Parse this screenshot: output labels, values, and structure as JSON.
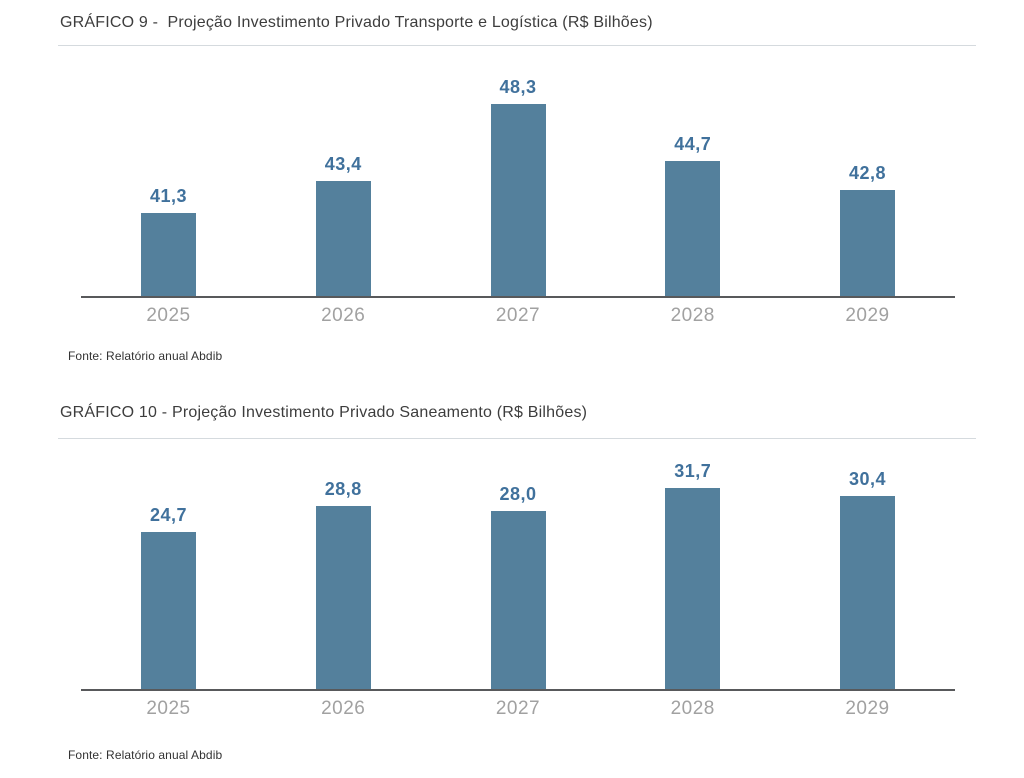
{
  "page": {
    "background": "#ffffff"
  },
  "colors": {
    "bar_fill": "#54809c",
    "value_label": "#40719c",
    "title_text": "#3d3d3d",
    "axis_line": "#58595b",
    "tick_label": "#a1a1a1",
    "divider": "#d5dade",
    "source_text": "#333333"
  },
  "chart_data": [
    {
      "type": "bar",
      "title": "GRÁFICO 9 -  Projeção Investimento Privado Transporte e Logística (R$ Bilhões)",
      "categories": [
        "2025",
        "2026",
        "2027",
        "2028",
        "2029"
      ],
      "values": [
        41.3,
        43.4,
        48.3,
        44.7,
        42.8
      ],
      "value_labels": [
        "41,3",
        "43,4",
        "48,3",
        "44,7",
        "42,8"
      ],
      "source": "Fonte: Relatório anual Abdib",
      "xlabel": "",
      "ylabel": "",
      "ylim": [
        36,
        50
      ],
      "grid": false,
      "legend": "none"
    },
    {
      "type": "bar",
      "title": "GRÁFICO 10 - Projeção Investimento Privado Saneamento (R$ Bilhões)",
      "categories": [
        "2025",
        "2026",
        "2027",
        "2028",
        "2029"
      ],
      "values": [
        24.7,
        28.8,
        28.0,
        31.7,
        30.4
      ],
      "value_labels": [
        "24,7",
        "28,8",
        "28,0",
        "31,7",
        "30,4"
      ],
      "source": "Fonte: Relatório anual Abdib",
      "xlabel": "",
      "ylabel": "",
      "ylim": [
        0,
        34
      ],
      "grid": false,
      "legend": "none"
    }
  ]
}
